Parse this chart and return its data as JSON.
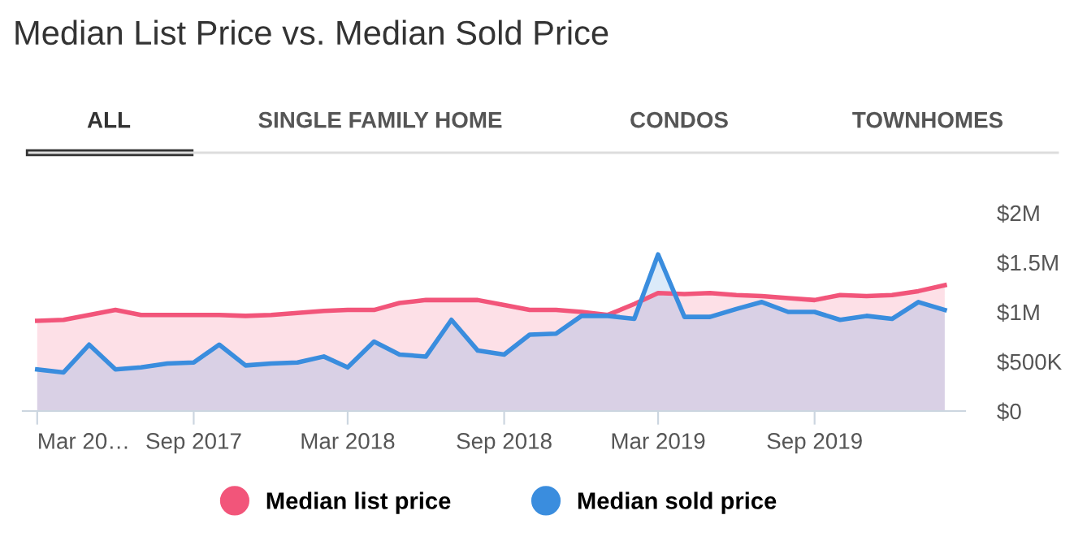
{
  "chart_data": {
    "type": "area",
    "title": "Median List Price vs. Median Sold Price",
    "annotations": [
      "ALL",
      "SINGLE FAMILY HOME",
      "CONDOS",
      "TOWNHOMES"
    ],
    "x": [
      "2017-03",
      "2017-04",
      "2017-05",
      "2017-06",
      "2017-07",
      "2017-08",
      "2017-09",
      "2017-10",
      "2017-11",
      "2017-12",
      "2018-01",
      "2018-02",
      "2018-03",
      "2018-04",
      "2018-05",
      "2018-06",
      "2018-07",
      "2018-08",
      "2018-09",
      "2018-10",
      "2018-11",
      "2018-12",
      "2019-01",
      "2019-02",
      "2019-03",
      "2019-04",
      "2019-05",
      "2019-06",
      "2019-07",
      "2019-08",
      "2019-09",
      "2019-10",
      "2019-11",
      "2019-12",
      "2020-01",
      "2020-02"
    ],
    "series": [
      {
        "name": "Median list price",
        "color": "#f2557a",
        "values": [
          910000,
          920000,
          970000,
          1020000,
          970000,
          970000,
          970000,
          970000,
          960000,
          970000,
          990000,
          1010000,
          1020000,
          1020000,
          1090000,
          1120000,
          1120000,
          1120000,
          1070000,
          1020000,
          1020000,
          1000000,
          970000,
          1080000,
          1190000,
          1180000,
          1190000,
          1170000,
          1160000,
          1140000,
          1120000,
          1170000,
          1160000,
          1170000,
          1210000,
          1270000
        ]
      },
      {
        "name": "Median sold price",
        "color": "#3a8dde",
        "values": [
          420000,
          390000,
          670000,
          420000,
          440000,
          480000,
          490000,
          670000,
          460000,
          480000,
          490000,
          550000,
          440000,
          700000,
          570000,
          550000,
          920000,
          610000,
          570000,
          770000,
          780000,
          960000,
          960000,
          930000,
          1580000,
          950000,
          950000,
          1030000,
          1100000,
          1000000,
          1000000,
          920000,
          960000,
          930000,
          1100000,
          1020000
        ]
      }
    ],
    "xlim": [
      "2017-02-12",
      "2020-02-25"
    ],
    "xticks": [
      {
        "value": "2017-03",
        "label": "Mar 20…"
      },
      {
        "value": "2017-09",
        "label": "Sep 2017"
      },
      {
        "value": "2018-03",
        "label": "Mar 2018"
      },
      {
        "value": "2018-09",
        "label": "Sep 2018"
      },
      {
        "value": "2019-03",
        "label": "Mar 2019"
      },
      {
        "value": "2019-09",
        "label": "Sep 2019"
      }
    ],
    "ylim": [
      0,
      2000000
    ],
    "yticks": [
      {
        "value": 0,
        "label": "$0"
      },
      {
        "value": 500000,
        "label": "$500K"
      },
      {
        "value": 1000000,
        "label": "$1M"
      },
      {
        "value": 1500000,
        "label": "$1.5M"
      },
      {
        "value": 2000000,
        "label": "$2M"
      }
    ],
    "grid": false,
    "legend": "bottom",
    "marker": "none",
    "line_style": "solid"
  }
}
